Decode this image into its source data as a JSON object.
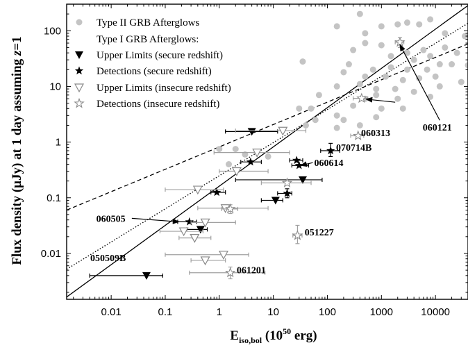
{
  "chart_data": {
    "type": "scatter",
    "xscale": "log",
    "yscale": "log",
    "xlim": [
      0.0015,
      40000
    ],
    "ylim": [
      0.0015,
      300
    ],
    "grid": false,
    "legend_position": "top-left",
    "xlabel_main": "E",
    "xlabel_sub": "iso,bol",
    "xlabel_tail": " (10",
    "xlabel_sup": "50",
    "xlabel_end": " erg)",
    "ylabel_pre": "Flux density (μJy) at 1 day assuming ",
    "ylabel_var": "z",
    "ylabel_post": "=1",
    "x_ticks": [
      0.01,
      0.1,
      1,
      10,
      100,
      1000,
      10000
    ],
    "x_tick_labels": [
      "0.01",
      "0.1",
      "1",
      "10",
      "100",
      "1000",
      "10000"
    ],
    "y_ticks": [
      0.01,
      0.1,
      1,
      10,
      100
    ],
    "y_tick_labels": [
      "0.01",
      "0.1",
      "1",
      "10",
      "100"
    ],
    "legend": {
      "type2": "Type II GRB Afterglows",
      "type1_header": "Type I GRB Afterglows:",
      "upper_secure": "Upper Limits (secure redshift)",
      "det_secure": "Detections (secure redshift)",
      "upper_insecure": "Upper Limits (insecure redshift)",
      "det_insecure": "Detections (insecure redshift)"
    },
    "colors": {
      "type2": "#c4c4c4",
      "secure": "#000000",
      "insecure": "#8a8a8a",
      "insecure_bar": "#a0a0a0"
    },
    "series": [
      {
        "name": "Type II GRB Afterglows",
        "marker": "circle",
        "points": [
          {
            "x": 400,
            "y": 200
          },
          {
            "x": 150,
            "y": 120
          },
          {
            "x": 500,
            "y": 90
          },
          {
            "x": 1000,
            "y": 120
          },
          {
            "x": 2000,
            "y": 130
          },
          {
            "x": 3000,
            "y": 140
          },
          {
            "x": 5000,
            "y": 130
          },
          {
            "x": 8000,
            "y": 160
          },
          {
            "x": 15000,
            "y": 90
          },
          {
            "x": 35000,
            "y": 80
          },
          {
            "x": 500,
            "y": 60
          },
          {
            "x": 1000,
            "y": 55
          },
          {
            "x": 3000,
            "y": 40
          },
          {
            "x": 6000,
            "y": 45
          },
          {
            "x": 15000,
            "y": 50
          },
          {
            "x": 25000,
            "y": 40
          },
          {
            "x": 300,
            "y": 45
          },
          {
            "x": 1500,
            "y": 35
          },
          {
            "x": 4000,
            "y": 30
          },
          {
            "x": 8000,
            "y": 35
          },
          {
            "x": 20000,
            "y": 25
          },
          {
            "x": 35,
            "y": 28
          },
          {
            "x": 250,
            "y": 25
          },
          {
            "x": 700,
            "y": 20
          },
          {
            "x": 1500,
            "y": 22
          },
          {
            "x": 3000,
            "y": 20
          },
          {
            "x": 7000,
            "y": 20
          },
          {
            "x": 12000,
            "y": 25
          },
          {
            "x": 40000,
            "y": 24
          },
          {
            "x": 200,
            "y": 18
          },
          {
            "x": 500,
            "y": 15
          },
          {
            "x": 1200,
            "y": 15
          },
          {
            "x": 2500,
            "y": 13
          },
          {
            "x": 5000,
            "y": 14
          },
          {
            "x": 10000,
            "y": 15
          },
          {
            "x": 30000,
            "y": 12
          },
          {
            "x": 150,
            "y": 10
          },
          {
            "x": 400,
            "y": 11
          },
          {
            "x": 800,
            "y": 9
          },
          {
            "x": 1800,
            "y": 9
          },
          {
            "x": 4000,
            "y": 8
          },
          {
            "x": 12000,
            "y": 10
          },
          {
            "x": 800,
            "y": 7
          },
          {
            "x": 2000,
            "y": 6
          },
          {
            "x": 500,
            "y": 6
          },
          {
            "x": 8000,
            "y": 6.5
          },
          {
            "x": 70,
            "y": 7
          },
          {
            "x": 300,
            "y": 4.5
          },
          {
            "x": 1000,
            "y": 4
          },
          {
            "x": 2500,
            "y": 4
          },
          {
            "x": 50,
            "y": 4
          },
          {
            "x": 30,
            "y": 4
          },
          {
            "x": 150,
            "y": 3
          },
          {
            "x": 800,
            "y": 2.8
          },
          {
            "x": 60,
            "y": 2.5
          },
          {
            "x": 200,
            "y": 2.5
          },
          {
            "x": 400,
            "y": 2
          },
          {
            "x": 40,
            "y": 2
          },
          {
            "x": 150,
            "y": 1.8
          },
          {
            "x": 2,
            "y": 0.75
          },
          {
            "x": 1,
            "y": 0.75
          },
          {
            "x": 3,
            "y": 0.6
          },
          {
            "x": 8,
            "y": 0.55
          },
          {
            "x": 1.5,
            "y": 0.4
          }
        ]
      },
      {
        "name": "Upper Limits (secure redshift)",
        "marker": "triangle-down",
        "points": [
          {
            "x": 4,
            "y": 1.55,
            "xerr": [
              1.3,
              12
            ]
          },
          {
            "x": 35,
            "y": 0.21,
            "xerr": [
              2,
              80
            ]
          },
          {
            "x": 11,
            "y": 0.09,
            "xerr": [
              6,
              15
            ]
          },
          {
            "x": 0.45,
            "y": 0.027,
            "xerr": [
              0.25,
              0.6
            ]
          },
          {
            "x": 0.045,
            "y": 0.004,
            "xerr": [
              0.004,
              0.09
            ]
          }
        ]
      },
      {
        "name": "Detections (secure redshift)",
        "marker": "star",
        "points": [
          {
            "x": 3.8,
            "y": 0.44,
            "xerr": [
              2.5,
              6
            ]
          },
          {
            "x": 0.9,
            "y": 0.125,
            "xerr": [
              0.7,
              1.3
            ]
          },
          {
            "x": 27,
            "y": 0.47,
            "xerr": [
              20,
              35
            ]
          },
          {
            "x": 30,
            "y": 0.38,
            "xerr": [
              22,
              45
            ]
          },
          {
            "x": 115,
            "y": 0.7,
            "xerr": [
              75,
              170
            ],
            "yerr": [
              0.55,
              0.95
            ]
          },
          {
            "x": 18,
            "y": 0.12,
            "xerr": [
              12,
              22
            ],
            "yerr": [
              0.1,
              0.145
            ]
          },
          {
            "x": 0.28,
            "y": 0.037,
            "xerr": [
              0.17,
              0.38
            ]
          }
        ]
      },
      {
        "name": "Upper Limits (insecure redshift)",
        "marker": "triangle-down-open",
        "points": [
          {
            "x": 15,
            "y": 1.6,
            "xerr": [
              2,
              40
            ]
          },
          {
            "x": 5,
            "y": 0.65,
            "xerr": [
              0.8,
              20
            ]
          },
          {
            "x": 2.1,
            "y": 0.3,
            "xerr": [
              1,
              8
            ]
          },
          {
            "x": 0.4,
            "y": 0.14,
            "xerr": [
              0.1,
              1.2
            ]
          },
          {
            "x": 1.3,
            "y": 0.065,
            "xerr": [
              0.4,
              8
            ]
          },
          {
            "x": 0.55,
            "y": 0.036,
            "xerr": [
              0.3,
              2
            ]
          },
          {
            "x": 0.22,
            "y": 0.025,
            "xerr": [
              0.08,
              0.5
            ]
          },
          {
            "x": 0.35,
            "y": 0.019,
            "xerr": [
              0.18,
              0.7
            ]
          },
          {
            "x": 1.2,
            "y": 0.0095,
            "xerr": [
              0.1,
              3.5
            ]
          },
          {
            "x": 0.55,
            "y": 0.0075,
            "xerr": [
              0.3,
              1.3
            ]
          }
        ]
      },
      {
        "name": "Detections (insecure redshift)",
        "marker": "star-open",
        "points": [
          {
            "x": 2200,
            "y": 62,
            "xerr": [
              1800,
              2600
            ],
            "yerr": [
              50,
              75
            ]
          },
          {
            "x": 430,
            "y": 6.1,
            "xerr": [
              300,
              560
            ]
          },
          {
            "x": 370,
            "y": 1.3,
            "xerr": [
              270,
              470
            ]
          },
          {
            "x": 18,
            "y": 0.185,
            "xerr": [
              6,
              50
            ]
          },
          {
            "x": 1.6,
            "y": 0.063,
            "xerr": [
              1.1,
              2.2
            ],
            "yerr": [
              0.052,
              0.075
            ]
          },
          {
            "x": 28,
            "y": 0.021,
            "xerr": [
              23,
              34
            ],
            "yerr": [
              0.015,
              0.032
            ]
          },
          {
            "x": 1.6,
            "y": 0.0045,
            "xerr": [
              0.28,
              7
            ],
            "yerr": [
              0.0035,
              0.0057
            ]
          }
        ]
      }
    ],
    "fit_lines": [
      {
        "style": "solid",
        "from": [
          0.0015,
          0.00165
        ],
        "to": [
          40000,
          284
        ]
      },
      {
        "style": "dotted",
        "from": [
          0.0015,
          0.0052
        ],
        "to": [
          40000,
          136
        ]
      },
      {
        "style": "dashed",
        "from": [
          0.0015,
          0.06
        ],
        "to": [
          40000,
          58
        ]
      }
    ],
    "annotations": [
      {
        "text": "060121",
        "label_xy": [
          5800,
          1.6
        ],
        "arrow_to": [
          2200,
          56
        ]
      },
      {
        "text": "060313",
        "label_xy": [
          420,
          1.28
        ]
      },
      {
        "text": "070714B",
        "label_xy": [
          145,
          0.7
        ]
      },
      {
        "text": "060614",
        "label_xy": [
          57,
          0.37
        ],
        "arrow_to": [
          32,
          0.38
        ]
      },
      {
        "text": "060505",
        "label_xy": [
          0.0053,
          0.037
        ],
        "arrow_to": [
          0.18,
          0.037
        ]
      },
      {
        "text": "051227",
        "label_xy": [
          38,
          0.021
        ]
      },
      {
        "text": "050509B",
        "label_xy": [
          0.0041,
          0.0073
        ]
      },
      {
        "text": "061201",
        "label_xy": [
          2.1,
          0.0044
        ]
      },
      {
        "text": "",
        "label_xy": [
          1800,
          5.2
        ],
        "arrow_to": [
          520,
          5.9
        ]
      }
    ]
  }
}
